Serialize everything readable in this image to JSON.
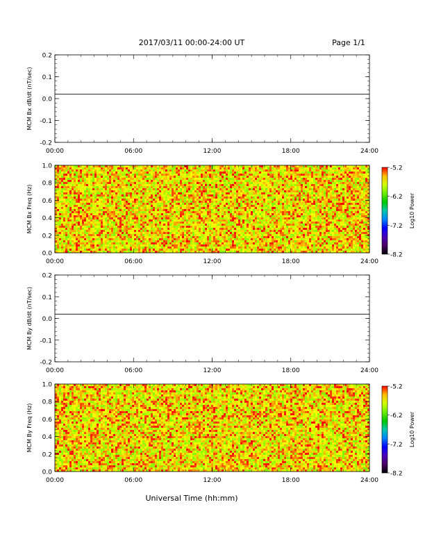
{
  "header": {
    "title": "2017/03/11  00:00-24:00 UT",
    "page": "Page 1/1"
  },
  "xaxis": {
    "label": "Universal Time (hh:mm)",
    "ticks": [
      "00:00",
      "06:00",
      "12:00",
      "18:00",
      "24:00"
    ],
    "range_hours": [
      0,
      24
    ]
  },
  "chart_data": [
    {
      "type": "line",
      "ylabel": "MCM Bx dB/dt (nT/sec)",
      "ylim": [
        -0.2,
        0.2
      ],
      "yticks": [
        "0.2",
        "0.1",
        "0.0",
        "-0.1",
        "-0.2"
      ],
      "series": [
        {
          "x": [
            0,
            24
          ],
          "y": [
            0.02,
            0.02
          ]
        }
      ]
    },
    {
      "type": "heatmap",
      "ylabel": "MCM Bx Freq (Hz)",
      "ylim": [
        0.0,
        1.0
      ],
      "yticks": [
        "1.0",
        "0.8",
        "0.6",
        "0.4",
        "0.2",
        "0.0"
      ],
      "colorbar": {
        "label": "Log10 Power",
        "ticks": [
          "-5.2",
          "-6.2",
          "-7.2",
          "-8.2"
        ],
        "range": [
          -8.2,
          -5.2
        ]
      },
      "dominant_level": "-5.5 (yellow-orange noise)"
    },
    {
      "type": "line",
      "ylabel": "MCM By dB/dt (nT/sec)",
      "ylim": [
        -0.2,
        0.2
      ],
      "yticks": [
        "0.2",
        "0.1",
        "0.0",
        "-0.1",
        "-0.2"
      ],
      "series": [
        {
          "x": [
            0,
            24
          ],
          "y": [
            0.02,
            0.02
          ]
        }
      ]
    },
    {
      "type": "heatmap",
      "ylabel": "MCM By Freq (Hz)",
      "ylim": [
        0.0,
        1.0
      ],
      "yticks": [
        "1.0",
        "0.8",
        "0.6",
        "0.4",
        "0.2",
        "0.0"
      ],
      "colorbar": {
        "label": "Log10 Power",
        "ticks": [
          "-5.2",
          "-6.2",
          "-7.2",
          "-8.2"
        ],
        "range": [
          -8.2,
          -5.2
        ]
      },
      "dominant_level": "-5.5 (yellow-orange noise)"
    }
  ]
}
